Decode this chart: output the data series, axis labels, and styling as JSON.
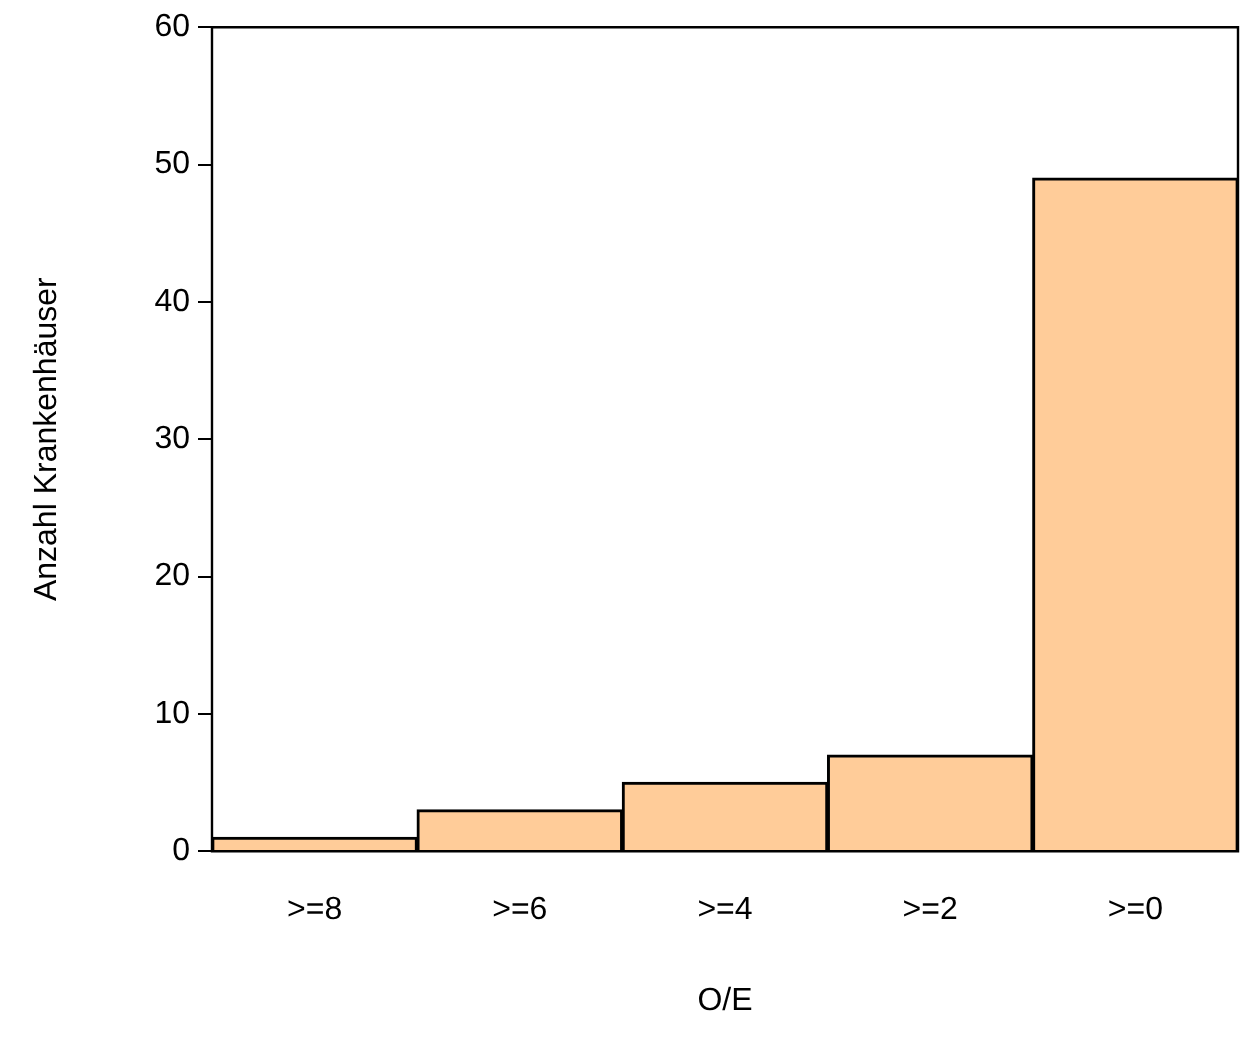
{
  "chart_data": {
    "type": "bar",
    "xlabel": "O/E",
    "ylabel": "Anzahl Krankenhäuser",
    "categories": [
      ">=8",
      ">=6",
      ">=4",
      ">=2",
      ">=0"
    ],
    "values": [
      1,
      3,
      5,
      7,
      49
    ],
    "color": "#ffcc99",
    "ylim": [
      0,
      60
    ],
    "yticks": [
      0,
      10,
      20,
      30,
      40,
      50,
      60
    ]
  }
}
